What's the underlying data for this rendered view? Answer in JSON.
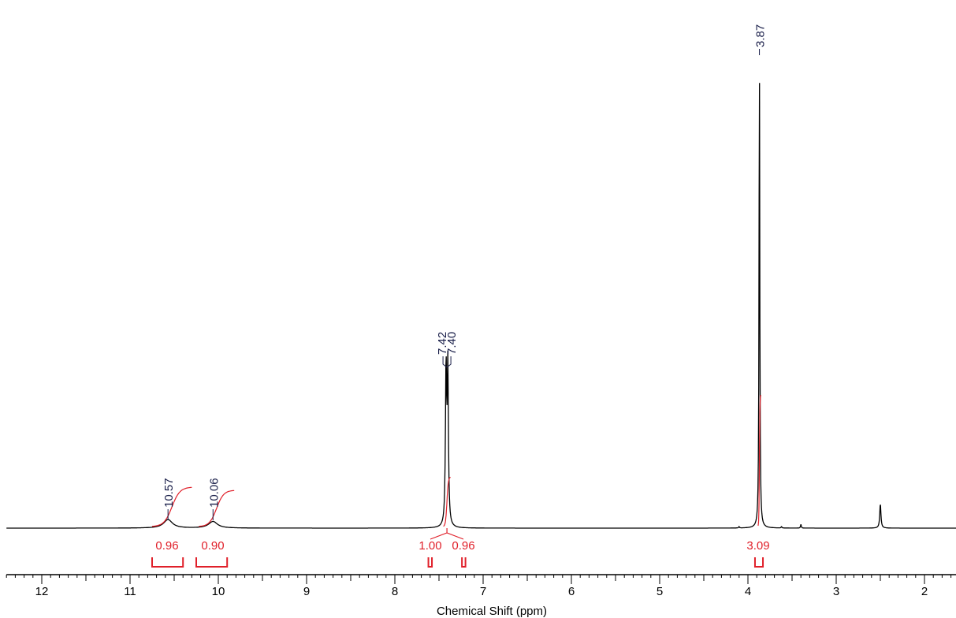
{
  "chart_data": {
    "type": "line",
    "title": "",
    "xlabel": "Chemical Shift (ppm)",
    "ylabel": "",
    "xlim": [
      12.4,
      1.6
    ],
    "x_reversed": true,
    "x_ticks": [
      "12",
      "11",
      "10",
      "9",
      "8",
      "7",
      "6",
      "5",
      "4",
      "3",
      "2"
    ],
    "grid": false,
    "spectrum_peaks": [
      {
        "ppm": 10.57,
        "height": 0.018,
        "width": 0.06
      },
      {
        "ppm": 10.06,
        "height": 0.014,
        "width": 0.06
      },
      {
        "ppm": 7.42,
        "height": 0.33,
        "width": 0.008
      },
      {
        "ppm": 7.4,
        "height": 0.33,
        "width": 0.008
      },
      {
        "ppm": 3.87,
        "height": 1.0,
        "width": 0.005
      },
      {
        "ppm": 2.5,
        "height": 0.052,
        "width": 0.008
      },
      {
        "ppm": 3.4,
        "height": 0.008,
        "width": 0.005
      },
      {
        "ppm": 3.62,
        "height": 0.003,
        "width": 0.005
      },
      {
        "ppm": 4.1,
        "height": 0.003,
        "width": 0.005
      }
    ],
    "peak_labels": [
      {
        "text": "10.57",
        "ppm": 10.57
      },
      {
        "text": "10.06",
        "ppm": 10.06
      },
      {
        "text": "7.42",
        "ppm": 7.42
      },
      {
        "text": "7.40",
        "ppm": 7.4
      },
      {
        "text": "3.87",
        "ppm": 3.87
      }
    ],
    "integrals": [
      {
        "value": "0.96",
        "from": 10.75,
        "to": 10.4
      },
      {
        "value": "0.90",
        "from": 10.25,
        "to": 9.9
      },
      {
        "value": "1.00",
        "from": 7.62,
        "to": 7.58
      },
      {
        "value": "0.96",
        "from": 7.24,
        "to": 7.2
      },
      {
        "value": "3.09",
        "from": 3.92,
        "to": 3.83
      }
    ],
    "colors": {
      "spectrum": "#000000",
      "integral": "#e0202a",
      "peak_label": "#1a1f4a"
    }
  }
}
